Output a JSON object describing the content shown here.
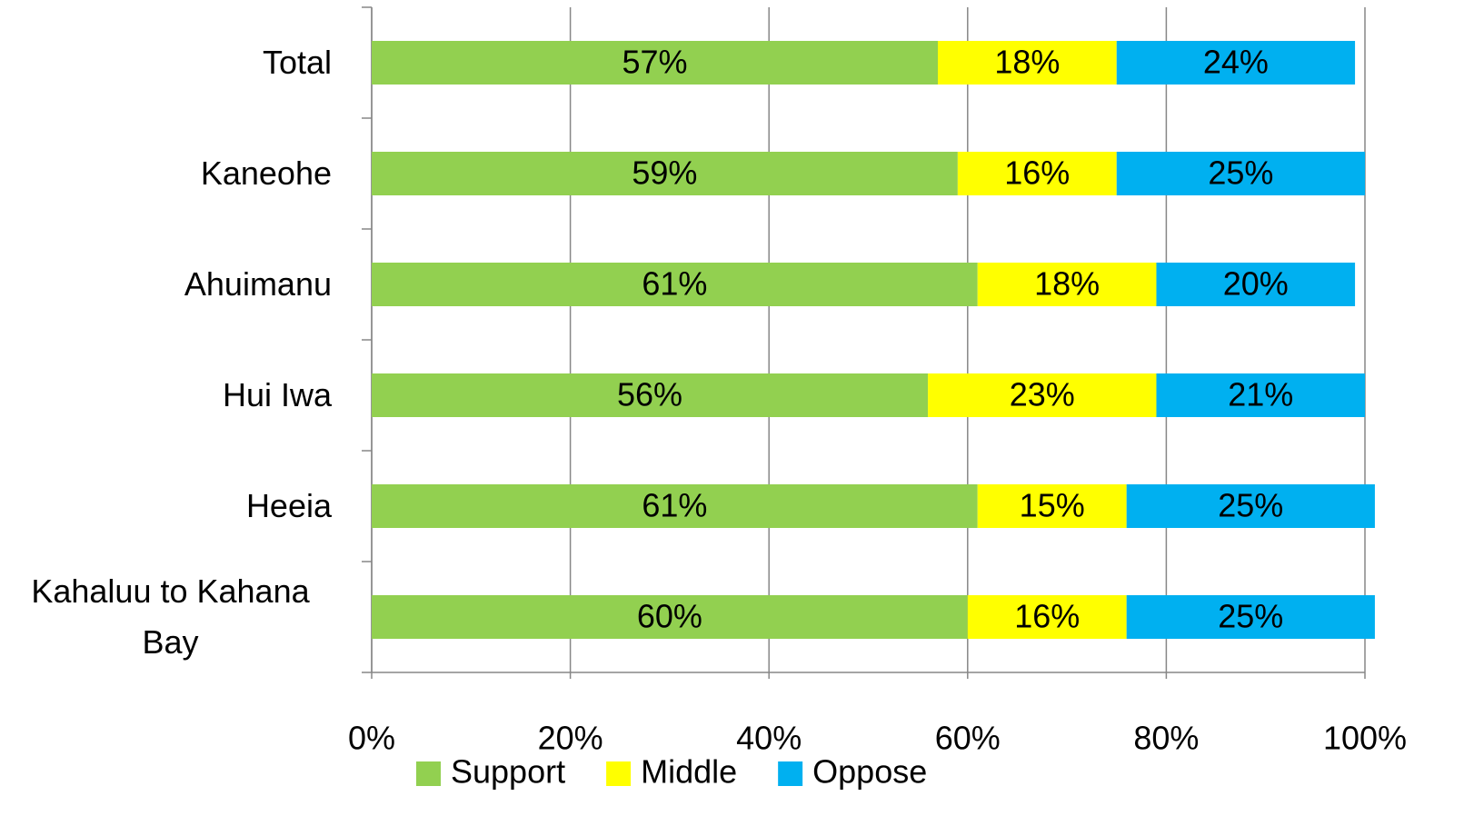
{
  "chart_data": {
    "type": "stacked_bar_horizontal",
    "categories": [
      "Total",
      "Kaneohe",
      "Ahuimanu",
      "Hui Iwa",
      "Heeia",
      "Kahaluu to Kahana Bay"
    ],
    "series": [
      {
        "name": "Support",
        "color": "#92d050",
        "values": [
          57,
          59,
          61,
          56,
          61,
          60
        ],
        "value_labels": [
          "57%",
          "59%",
          "61%",
          "56%",
          "61%",
          "60%"
        ]
      },
      {
        "name": "Middle",
        "color": "#ffff00",
        "values": [
          18,
          16,
          18,
          23,
          15,
          16
        ],
        "value_labels": [
          "18%",
          "16%",
          "18%",
          "23%",
          "15%",
          "16%"
        ]
      },
      {
        "name": "Oppose",
        "color": "#00b0f0",
        "values": [
          24,
          25,
          20,
          21,
          25,
          25
        ],
        "value_labels": [
          "24%",
          "25%",
          "20%",
          "21%",
          "25%",
          "25%"
        ]
      }
    ],
    "xlim": [
      0,
      100
    ],
    "xticks": [
      {
        "value": 0,
        "label": "0%"
      },
      {
        "value": 20,
        "label": "20%"
      },
      {
        "value": 40,
        "label": "40%"
      },
      {
        "value": 60,
        "label": "60%"
      },
      {
        "value": 80,
        "label": "80%"
      },
      {
        "value": 100,
        "label": "100%"
      }
    ],
    "grid": true,
    "legend": "bottom"
  }
}
